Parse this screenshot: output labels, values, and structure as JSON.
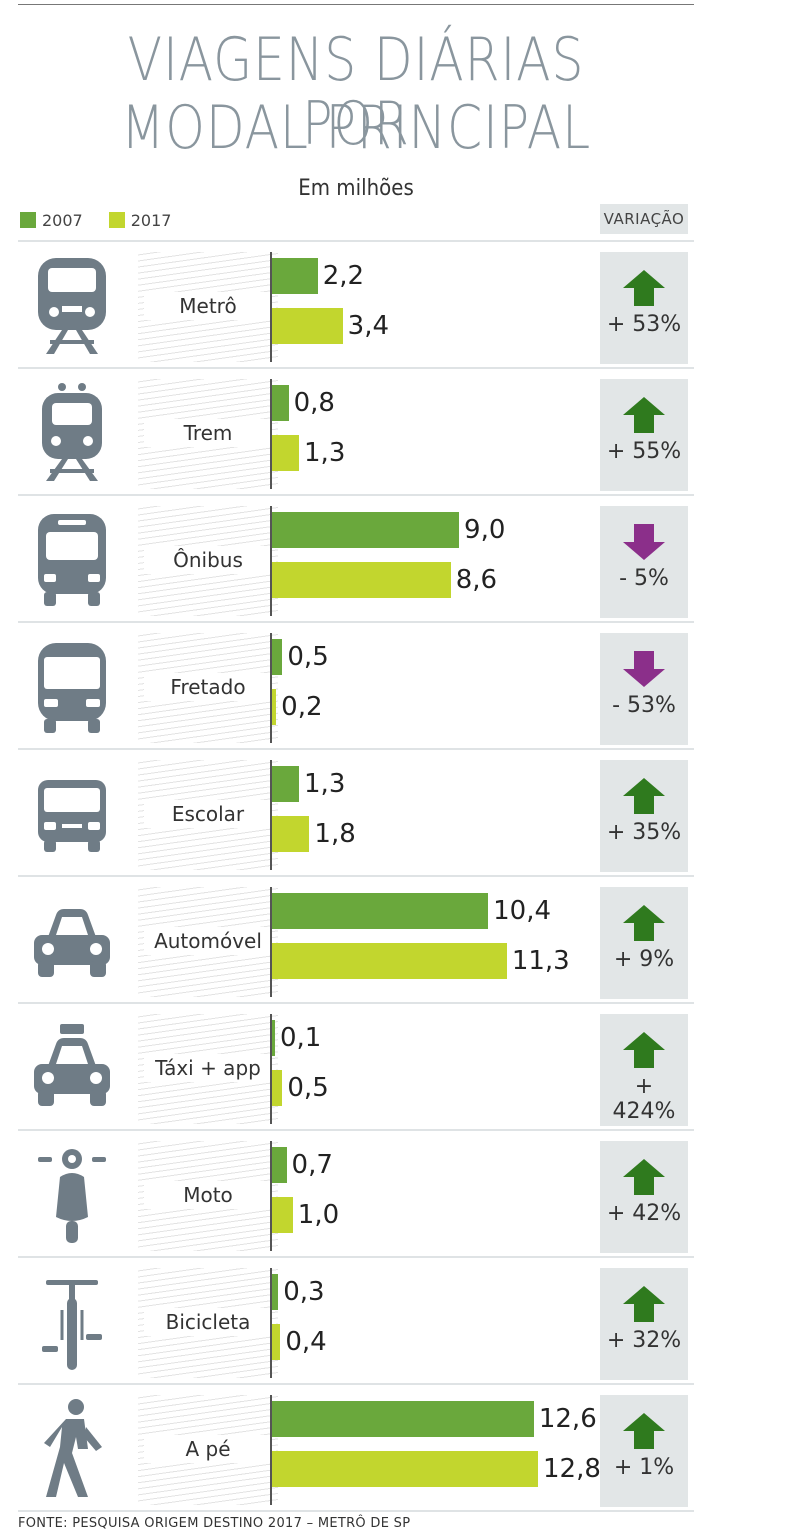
{
  "header": {
    "title_line1": "VIAGENS DIÁRIAS POR",
    "title_line2": "MODAL PRINCIPAL",
    "subtitle": "Em milhões",
    "variation_heading": "VARIAÇÃO"
  },
  "legend": [
    {
      "label": "2007",
      "color": "#6aa83c"
    },
    {
      "label": "2017",
      "color": "#c2d62e"
    }
  ],
  "colors": {
    "up_arrow": "#2f7a1e",
    "down_arrow": "#8b2f8a",
    "icon": "#6f7c86"
  },
  "chart_data": {
    "type": "bar",
    "orientation": "horizontal",
    "title": "VIAGENS DIÁRIAS POR MODAL PRINCIPAL",
    "subtitle": "Em milhões",
    "categories": [
      "Metrô",
      "Trem",
      "Ônibus",
      "Fretado",
      "Escolar",
      "Automóvel",
      "Táxi + app",
      "Moto",
      "Bicicleta",
      "A pé"
    ],
    "series": [
      {
        "name": "2007",
        "values": [
          2.2,
          0.8,
          9.0,
          0.5,
          1.3,
          10.4,
          0.1,
          0.7,
          0.3,
          12.6
        ],
        "labels": [
          "2,2",
          "0,8",
          "9,0",
          "0,5",
          "1,3",
          "10,4",
          "0,1",
          "0,7",
          "0,3",
          "12,6"
        ]
      },
      {
        "name": "2017",
        "values": [
          3.4,
          1.3,
          8.6,
          0.2,
          1.8,
          11.3,
          0.5,
          1.0,
          0.4,
          12.8
        ],
        "labels": [
          "3,4",
          "1,3",
          "8,6",
          "0,2",
          "1,8",
          "11,3",
          "0,5",
          "1,0",
          "0,4",
          "12,8"
        ]
      }
    ],
    "variation": [
      {
        "text": "+ 53%",
        "direction": "up"
      },
      {
        "text": "+ 55%",
        "direction": "up"
      },
      {
        "text": "- 5%",
        "direction": "down"
      },
      {
        "text": "- 53%",
        "direction": "down"
      },
      {
        "text": "+ 35%",
        "direction": "up"
      },
      {
        "text": "+ 9%",
        "direction": "up"
      },
      {
        "text": "+ 424%",
        "direction": "up"
      },
      {
        "text": "+ 42%",
        "direction": "up"
      },
      {
        "text": "+ 32%",
        "direction": "up"
      },
      {
        "text": "+ 1%",
        "direction": "up"
      }
    ],
    "icons": [
      "metro-train-icon",
      "train-icon",
      "bus-icon",
      "charter-bus-icon",
      "school-bus-icon",
      "car-icon",
      "taxi-icon",
      "scooter-icon",
      "bicycle-icon",
      "pedestrian-icon"
    ]
  },
  "source": "FONTE: PESQUISA ORIGEM DESTINO 2017 – METRÔ DE SP"
}
